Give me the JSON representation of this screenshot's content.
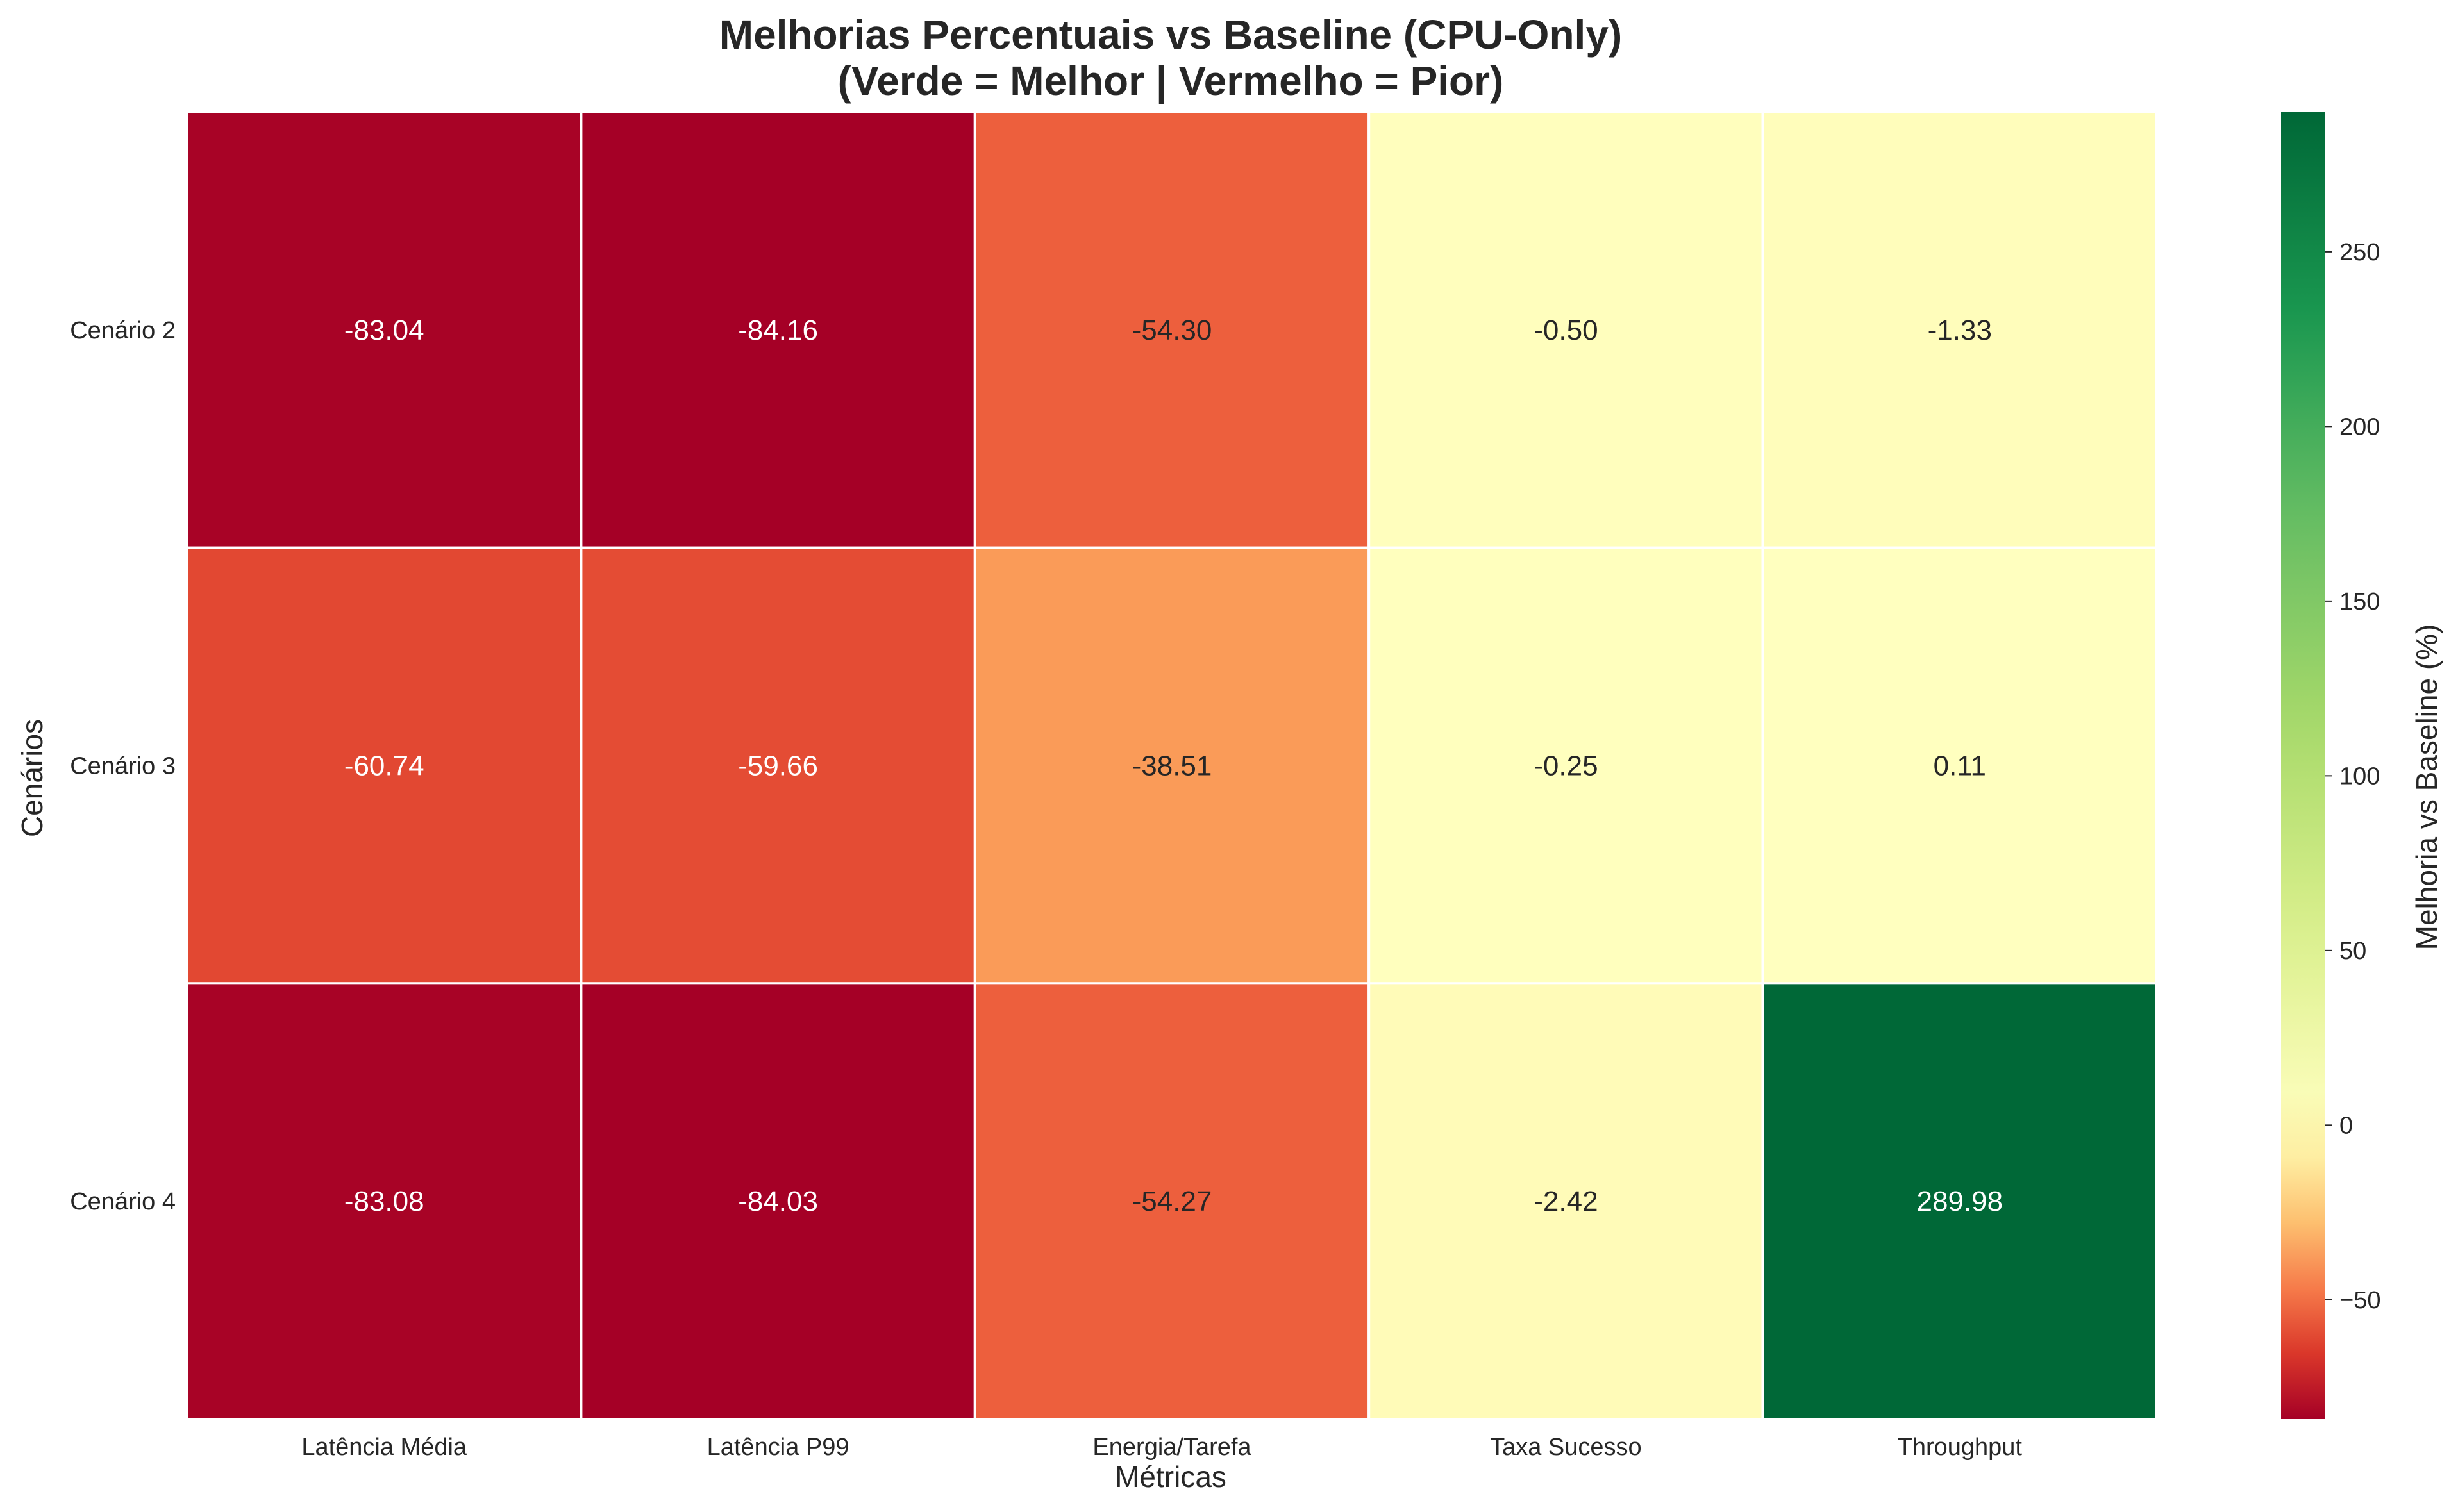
{
  "chart_data": {
    "type": "heatmap",
    "title": "Melhorias Percentuais vs Baseline (CPU-Only)",
    "subtitle": "(Verde = Melhor | Vermelho = Pior)",
    "xlabel": "Métricas",
    "ylabel": "Cenários",
    "columns": [
      "Latência Média",
      "Latência P99",
      "Energia/Tarefa",
      "Taxa Sucesso",
      "Throughput"
    ],
    "rows": [
      "Cenário 2",
      "Cenário 3",
      "Cenário 4"
    ],
    "values": [
      [
        -83.04,
        -84.16,
        -54.3,
        -0.5,
        -1.33
      ],
      [
        -60.74,
        -59.66,
        -38.51,
        -0.25,
        0.11
      ],
      [
        -83.08,
        -84.03,
        -54.27,
        -2.42,
        289.98
      ]
    ],
    "value_labels": [
      [
        "-83.04",
        "-84.16",
        "-54.30",
        "-0.50",
        "-1.33"
      ],
      [
        "-60.74",
        "-59.66",
        "-38.51",
        "-0.25",
        "0.11"
      ],
      [
        "-83.08",
        "-84.03",
        "-54.27",
        "-2.42",
        "289.98"
      ]
    ],
    "colorbar": {
      "label": "Melhoria vs Baseline (%)",
      "range": [
        -84.16,
        289.98
      ],
      "ticks": [
        -50,
        0,
        50,
        100,
        150,
        200,
        250
      ],
      "tick_labels": [
        "−50",
        "0",
        "50",
        "100",
        "150",
        "200",
        "250"
      ],
      "center": 0,
      "colormap": "RdYlGn"
    }
  }
}
